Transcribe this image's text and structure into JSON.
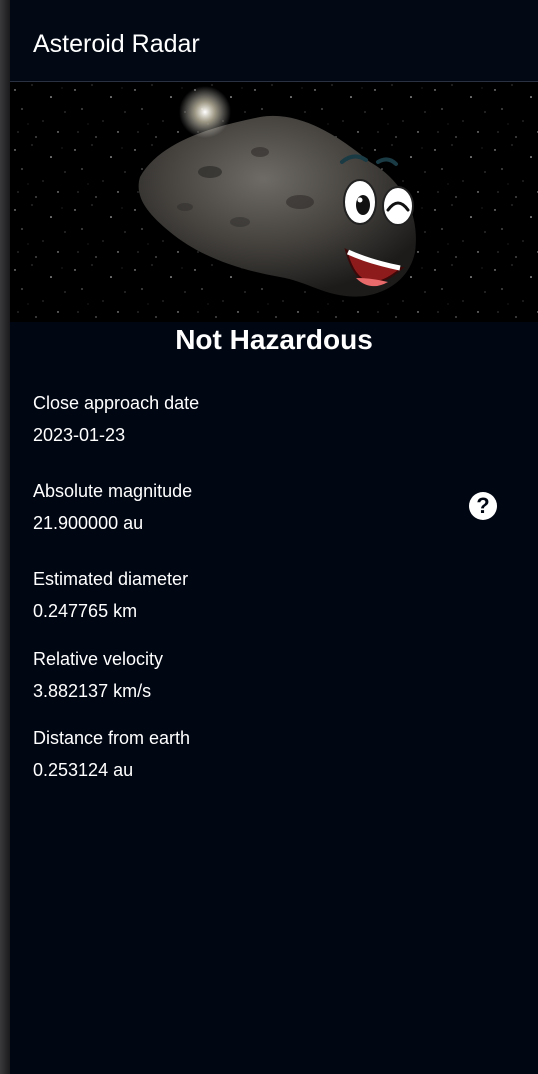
{
  "app_bar": {
    "title": "Asteroid Radar"
  },
  "hero": {
    "image_icon": "happy-asteroid-image"
  },
  "status": {
    "text": "Not Hazardous"
  },
  "details": {
    "close_approach_date": {
      "label": "Close approach date",
      "value": "2023-01-23"
    },
    "absolute_magnitude": {
      "label": "Absolute magnitude",
      "value": "21.900000 au"
    },
    "estimated_diameter": {
      "label": "Estimated diameter",
      "value": "0.247765 km"
    },
    "relative_velocity": {
      "label": "Relative velocity",
      "value": "3.882137 km/s"
    },
    "distance_from_earth": {
      "label": "Distance from earth",
      "value": "0.253124 au"
    }
  },
  "help": {
    "icon": "help-circle-icon",
    "glyph": "?"
  },
  "colors": {
    "background": "#010613",
    "app_bar": "#020915",
    "text": "#ffffff"
  }
}
